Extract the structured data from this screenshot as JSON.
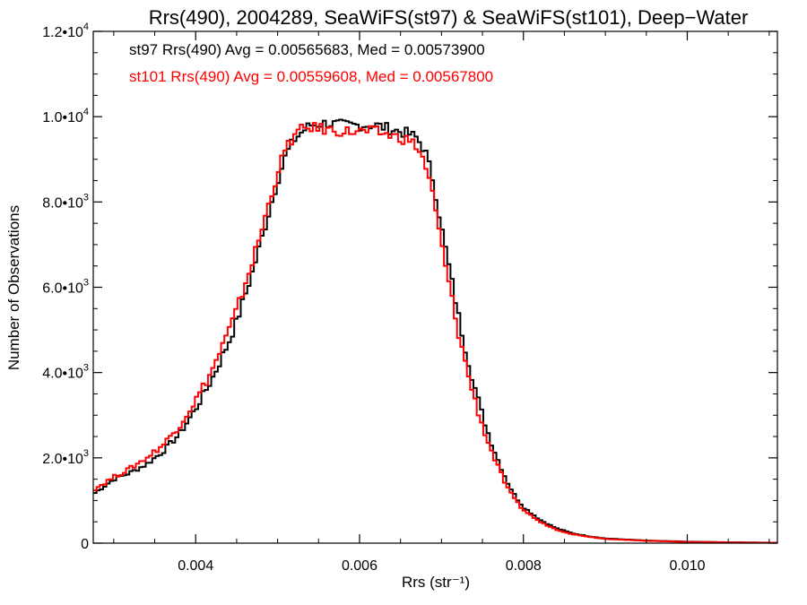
{
  "chart_data": {
    "type": "line",
    "style": "histogram-step",
    "title": "Rrs(490), 2004289, SeaWiFS(st97) & SeaWiFS(st101), Deep−Water",
    "xlabel": "Rrs (str⁻¹)",
    "ylabel": "Number of Observations",
    "xlim": [
      0.00275,
      0.0111
    ],
    "ylim": [
      0,
      12000
    ],
    "x_ticks": [
      {
        "value": 0.004,
        "label": "0.004"
      },
      {
        "value": 0.006,
        "label": "0.006"
      },
      {
        "value": 0.008,
        "label": "0.008"
      },
      {
        "value": 0.01,
        "label": "0.010"
      }
    ],
    "y_ticks": [
      {
        "value": 0,
        "mantissa": "0",
        "exp": ""
      },
      {
        "value": 2000,
        "mantissa": "2.0•10",
        "exp": "3"
      },
      {
        "value": 4000,
        "mantissa": "4.0•10",
        "exp": "3"
      },
      {
        "value": 6000,
        "mantissa": "6.0•10",
        "exp": "3"
      },
      {
        "value": 8000,
        "mantissa": "8.0•10",
        "exp": "3"
      },
      {
        "value": 10000,
        "mantissa": "1.0•10",
        "exp": "4"
      },
      {
        "value": 12000,
        "mantissa": "1.2•10",
        "exp": "4"
      }
    ],
    "annotations": [
      {
        "text": "st97 Rrs(490) Avg = 0.00565683, Med = 0.00573900",
        "color": "#000000"
      },
      {
        "text": "st101 Rrs(490) Avg = 0.00559608, Med = 0.00567800",
        "color": "#ff0000"
      }
    ],
    "series": [
      {
        "color": "#000000",
        "x": [
          0.00275,
          0.003,
          0.0032,
          0.0034,
          0.0036,
          0.0038,
          0.004,
          0.0042,
          0.0044,
          0.0045,
          0.0046,
          0.0047,
          0.0048,
          0.0049,
          0.005,
          0.0051,
          0.0052,
          0.0053,
          0.0054,
          0.0056,
          0.0058,
          0.006,
          0.0062,
          0.0064,
          0.0066,
          0.0067,
          0.0068,
          0.0069,
          0.007,
          0.0071,
          0.0072,
          0.0073,
          0.0074,
          0.0075,
          0.0076,
          0.0077,
          0.0078,
          0.0079,
          0.008,
          0.0082,
          0.0084,
          0.0086,
          0.0088,
          0.009,
          0.0095,
          0.01,
          0.0105,
          0.0111
        ],
        "y": [
          1150,
          1500,
          1650,
          1850,
          2150,
          2550,
          3150,
          3850,
          4700,
          5200,
          5800,
          6400,
          7100,
          7800,
          8500,
          9100,
          9450,
          9650,
          9800,
          9850,
          9800,
          9800,
          9800,
          9700,
          9600,
          9500,
          9200,
          8500,
          7400,
          6400,
          5400,
          4500,
          3700,
          3000,
          2400,
          1900,
          1450,
          1100,
          850,
          550,
          350,
          230,
          160,
          110,
          60,
          35,
          20,
          10
        ]
      },
      {
        "color": "#ff0000",
        "x": [
          0.00275,
          0.003,
          0.0032,
          0.0034,
          0.0036,
          0.0038,
          0.004,
          0.0042,
          0.0044,
          0.0045,
          0.0046,
          0.0047,
          0.0048,
          0.0049,
          0.005,
          0.0051,
          0.0052,
          0.0053,
          0.0054,
          0.0056,
          0.0058,
          0.006,
          0.0062,
          0.0064,
          0.0066,
          0.0067,
          0.0068,
          0.0069,
          0.007,
          0.0071,
          0.0072,
          0.0073,
          0.0074,
          0.0075,
          0.0076,
          0.0077,
          0.0078,
          0.0079,
          0.008,
          0.0082,
          0.0084,
          0.0086,
          0.0088,
          0.009,
          0.0095,
          0.01,
          0.0105,
          0.0111
        ],
        "y": [
          1250,
          1550,
          1750,
          2000,
          2300,
          2750,
          3350,
          4050,
          4950,
          5450,
          6050,
          6650,
          7300,
          8000,
          8700,
          9250,
          9550,
          9700,
          9750,
          9700,
          9650,
          9650,
          9650,
          9550,
          9450,
          9300,
          8900,
          8100,
          7000,
          6000,
          5000,
          4150,
          3400,
          2750,
          2200,
          1750,
          1300,
          1000,
          780,
          500,
          320,
          210,
          150,
          100,
          55,
          30,
          18,
          8
        ]
      }
    ]
  }
}
